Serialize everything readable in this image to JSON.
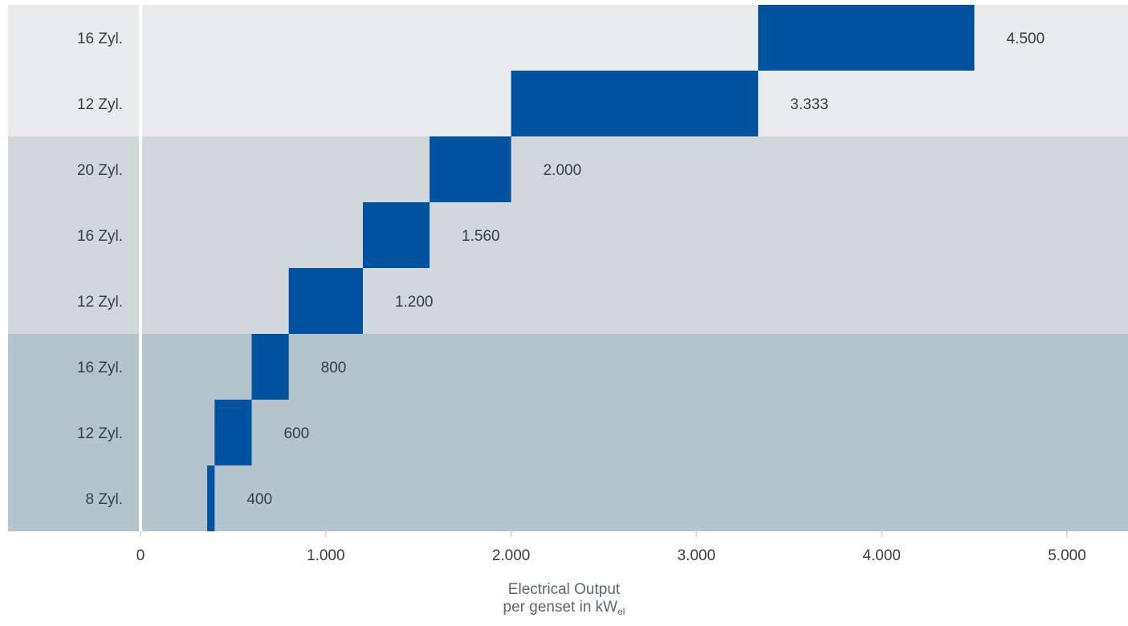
{
  "chart_data": {
    "type": "bar",
    "orientation": "horizontal-floating",
    "categories": [
      "8 Zyl.",
      "12 Zyl.",
      "16 Zyl.",
      "12 Zyl.",
      "16 Zyl.",
      "20 Zyl.",
      "12 Zyl.",
      "16 Zyl."
    ],
    "ranges": [
      [
        360,
        400
      ],
      [
        400,
        600
      ],
      [
        600,
        800
      ],
      [
        800,
        1200
      ],
      [
        1200,
        1560
      ],
      [
        1560,
        2000
      ],
      [
        2000,
        3333
      ],
      [
        3333,
        4500
      ]
    ],
    "value_labels": [
      "400",
      "600",
      "800",
      "1.200",
      "1.560",
      "2.000",
      "3.333",
      "4.500"
    ],
    "xlim": [
      0,
      5000
    ],
    "x_ticks": [
      0,
      1000,
      2000,
      3000,
      4000,
      5000
    ],
    "x_tick_labels": [
      "0",
      "1.000",
      "2.000",
      "3.000",
      "4.000",
      "5.000"
    ],
    "xlabel_line1": "Electrical Output",
    "xlabel_line2": "per genset in kW",
    "xlabel_subscript": "el",
    "groups": [
      {
        "rows": [
          0,
          2
        ],
        "color": "#b5c4cc"
      },
      {
        "rows": [
          3,
          5
        ],
        "color": "#d1d8db"
      },
      {
        "rows": [
          6,
          7
        ],
        "color": "#e9ebed"
      }
    ],
    "bar_color": "#00539f",
    "grid": false
  }
}
